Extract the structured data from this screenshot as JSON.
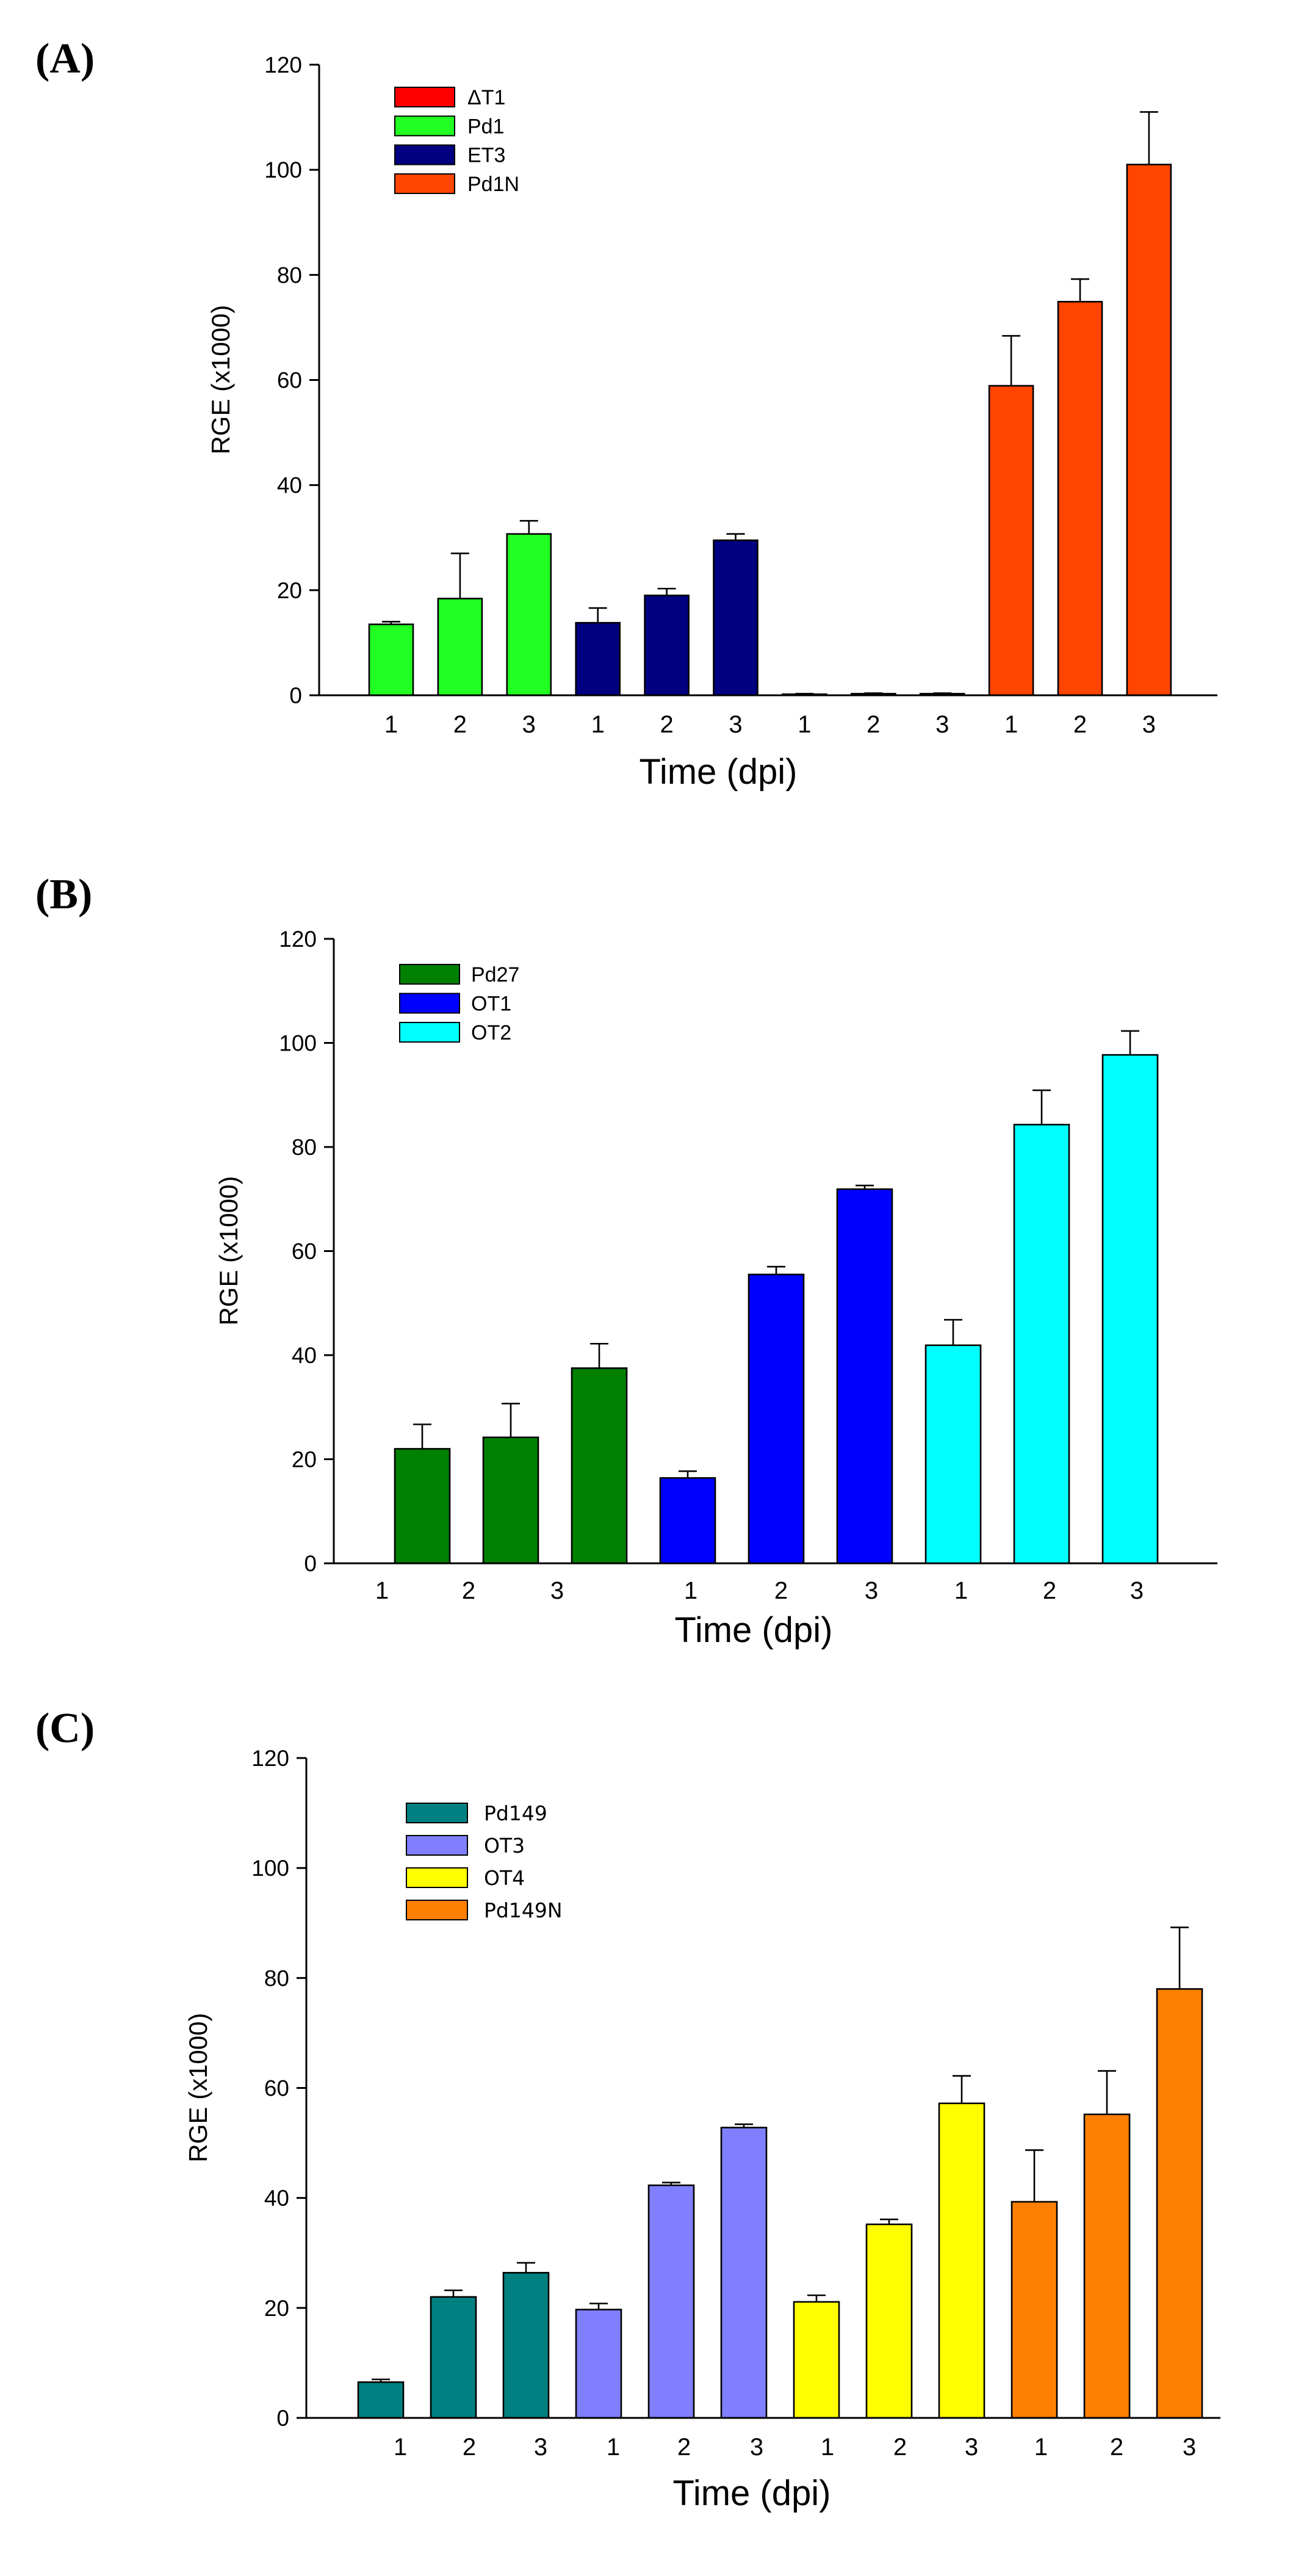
{
  "chart_data": [
    {
      "type": "bar",
      "panel_label": "(A)",
      "xlabel": "Time (dpi)",
      "ylabel": "RGE (x1000)",
      "ylim": [
        0,
        120
      ],
      "yticks": [
        0,
        20,
        40,
        60,
        80,
        100,
        120
      ],
      "categories": [
        "1",
        "2",
        "3"
      ],
      "legend_position": "top-left",
      "legend_order": [
        2,
        0,
        1,
        3
      ],
      "series": [
        {
          "name": "Pd1",
          "color": "#22ff22",
          "values": [
            13.5,
            18.4,
            30.7
          ],
          "errors": [
            0.5,
            8.6,
            2.5
          ]
        },
        {
          "name": "ET3",
          "color": "#000080",
          "values": [
            13.8,
            19.0,
            29.5
          ],
          "errors": [
            2.8,
            1.3,
            1.2
          ]
        },
        {
          "name": "ΔT1",
          "color": "#ff0000",
          "values": [
            0.2,
            0.3,
            0.3
          ],
          "errors": [
            0.1,
            0.1,
            0.1
          ]
        },
        {
          "name": "Pd1N",
          "color": "#ff4500",
          "values": [
            58.9,
            74.9,
            101.0
          ],
          "errors": [
            9.5,
            4.3,
            10.0
          ]
        }
      ]
    },
    {
      "type": "bar",
      "panel_label": "(B)",
      "xlabel": "Time (dpi)",
      "ylabel": "RGE (x1000)",
      "ylim": [
        0,
        120
      ],
      "yticks": [
        0,
        20,
        40,
        60,
        80,
        100,
        120
      ],
      "categories": [
        "1",
        "2",
        "3"
      ],
      "legend_position": "top-left",
      "legend_order": [
        0,
        1,
        2
      ],
      "series": [
        {
          "name": "Pd27",
          "color": "#008000",
          "values": [
            22.0,
            24.2,
            37.5
          ],
          "errors": [
            4.7,
            6.5,
            4.7
          ]
        },
        {
          "name": "OT1",
          "color": "#0000ff",
          "values": [
            16.4,
            55.5,
            71.9
          ],
          "errors": [
            1.3,
            1.5,
            0.7
          ]
        },
        {
          "name": "OT2",
          "color": "#00ffff",
          "values": [
            41.9,
            84.3,
            97.7
          ],
          "errors": [
            4.9,
            6.6,
            4.6
          ]
        }
      ]
    },
    {
      "type": "bar",
      "panel_label": "(C)",
      "xlabel": "Time (dpi)",
      "ylabel": "RGE (x1000)",
      "ylim": [
        0,
        120
      ],
      "yticks": [
        0,
        20,
        40,
        60,
        80,
        100,
        120
      ],
      "categories": [
        "1",
        "2",
        "3"
      ],
      "legend_position": "top-left",
      "legend_order": [
        0,
        1,
        2,
        3
      ],
      "series": [
        {
          "name": "Pd149",
          "color": "#008080",
          "values": [
            6.5,
            22.0,
            26.4
          ],
          "errors": [
            0.5,
            1.2,
            1.8
          ]
        },
        {
          "name": "OT3",
          "color": "#8080ff",
          "values": [
            19.7,
            42.3,
            52.8
          ],
          "errors": [
            1.1,
            0.5,
            0.6
          ]
        },
        {
          "name": "OT4",
          "color": "#ffff00",
          "values": [
            21.1,
            35.2,
            57.2
          ],
          "errors": [
            1.2,
            0.9,
            5.0
          ]
        },
        {
          "name": "Pd149N",
          "color": "#ff8000",
          "values": [
            39.3,
            55.2,
            78.0
          ],
          "errors": [
            9.4,
            7.9,
            11.2
          ]
        }
      ]
    }
  ]
}
